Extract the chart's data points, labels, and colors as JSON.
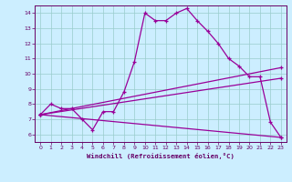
{
  "xlabel": "Windchill (Refroidissement éolien,°C)",
  "bg_color": "#cceeff",
  "line_color": "#990099",
  "grid_color": "#99cccc",
  "axis_color": "#660066",
  "tick_color": "#660066",
  "xlim": [
    -0.5,
    23.5
  ],
  "ylim": [
    5.5,
    14.5
  ],
  "yticks": [
    6,
    7,
    8,
    9,
    10,
    11,
    12,
    13,
    14
  ],
  "xticks": [
    0,
    1,
    2,
    3,
    4,
    5,
    6,
    7,
    8,
    9,
    10,
    11,
    12,
    13,
    14,
    15,
    16,
    17,
    18,
    19,
    20,
    21,
    22,
    23
  ],
  "line1_x": [
    0,
    1,
    2,
    3,
    4,
    5,
    6,
    7,
    8,
    9,
    10,
    11,
    12,
    13,
    14,
    15,
    16,
    17,
    18,
    19,
    20,
    21,
    22,
    23
  ],
  "line1_y": [
    7.3,
    8.0,
    7.7,
    7.7,
    7.0,
    6.3,
    7.5,
    7.5,
    8.8,
    10.8,
    14.0,
    13.5,
    13.5,
    14.0,
    14.3,
    13.5,
    12.8,
    12.0,
    11.0,
    10.5,
    9.8,
    9.8,
    6.8,
    5.8
  ],
  "line2_x": [
    0,
    23
  ],
  "line2_y": [
    7.3,
    10.4
  ],
  "line3_x": [
    0,
    23
  ],
  "line3_y": [
    7.3,
    9.7
  ],
  "line4_x": [
    0,
    23
  ],
  "line4_y": [
    7.3,
    5.8
  ],
  "marker_x": [
    0,
    1,
    2,
    3,
    4,
    5,
    6,
    7,
    8,
    9,
    10,
    11,
    12,
    13,
    14,
    15,
    16,
    17,
    18,
    19,
    20,
    21,
    22,
    23
  ],
  "marker_y": [
    7.3,
    8.0,
    7.7,
    7.7,
    7.0,
    6.3,
    7.5,
    7.5,
    8.8,
    10.8,
    14.0,
    13.5,
    13.5,
    14.0,
    14.3,
    13.5,
    12.8,
    12.0,
    11.0,
    10.5,
    9.8,
    9.8,
    6.8,
    5.8
  ]
}
